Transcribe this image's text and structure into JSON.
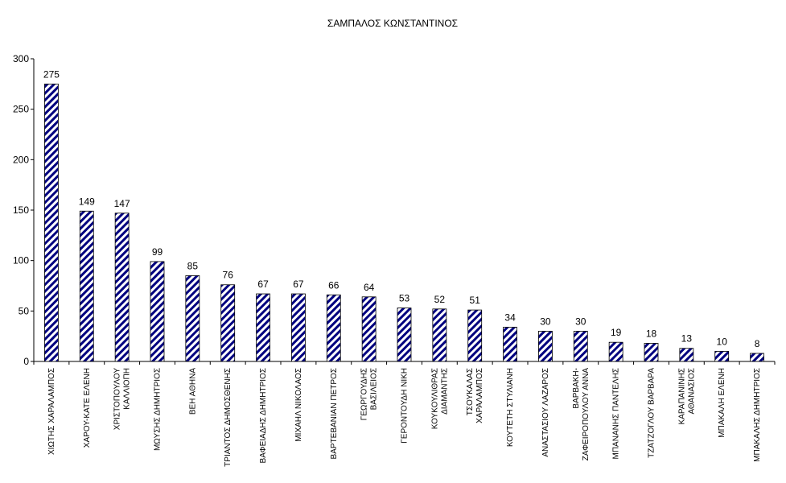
{
  "chart_data": {
    "type": "bar",
    "title": "ΣΑΜΠΑΛΟΣ ΚΩΝΣΤΑΝΤΙΝΟΣ",
    "xlabel": "",
    "ylabel": "",
    "ylim": [
      0,
      300
    ],
    "yticks": [
      0,
      50,
      100,
      150,
      200,
      250,
      300
    ],
    "grid": false,
    "legend": "none",
    "bar_fill": "diagonal-hatch",
    "colors": {
      "bar_stripe": "#00007f",
      "bar_background": "#ffffff",
      "axis": "#000000"
    },
    "categories": [
      [
        "ΧΙΩΤΗΣ ΧΑΡΑΛΑΜΠΟΣ"
      ],
      [
        "ΧΑΡΟΥ-ΚΑΤΕ ΕΛΕΝΗ"
      ],
      [
        "ΧΡΙΣΤΟΠΟΥΛΟΥ",
        "ΚΑΛΛΙΟΠΗ"
      ],
      [
        "ΜΩΥΣΗΣ ΔΗΜΗΤΡΙΟΣ"
      ],
      [
        "ΒΕΗ ΑΘΗΝΑ"
      ],
      [
        "ΤΡΙΑΝΤΟΣ ΔΗΜΟΣΘΕΝΗΣ"
      ],
      [
        "ΒΑΦΕΙΑΔΗΣ ΔΗΜΗΤΡΙΟΣ"
      ],
      [
        "ΜΙΧΑΗΛ ΝΙΚΟΛΑΟΣ"
      ],
      [
        "ΒΑΡΤΕΒΑΝΙΑΝ ΠΕΤΡΟΣ"
      ],
      [
        "ΓΕΩΡΓΟΥΔΗΣ",
        "ΒΑΣΙΛΕΙΟΣ"
      ],
      [
        "ΓΕΡΟΝΤΟΥΔΗ ΝΙΚΗ"
      ],
      [
        "ΚΟΥΚΟΥΛΙΘΡΑΣ",
        "ΔΙΑΜΑΝΤΗΣ"
      ],
      [
        "ΤΣΟΥΚΑΛΑΣ",
        "ΧΑΡΑΛΑΜΠΟΣ"
      ],
      [
        "ΚΟΥΤΕΤΗ ΣΤΥΛΙΑΝΗ"
      ],
      [
        "ΑΝΑΣΤΑΣΙΟΥ ΛΑΖΑΡΟΣ"
      ],
      [
        "ΒΑΡΒΑΚΗ-",
        "ΖΑΦΕΙΡΟΠΟΥΛΟΥ ΑΝΝΑ"
      ],
      [
        "ΜΠΑΝΑΝΗΣ ΠΑΝΤΕΛΗΣ"
      ],
      [
        "ΤΖΑΤΖΟΓΛΟΥ ΒΑΡΒΑΡΑ"
      ],
      [
        "ΚΑΡΑΠΑΝΙΝΗΣ",
        "ΑΘΑΝΑΣΙΟΣ"
      ],
      [
        "ΜΠΑΚΑΛΗ ΕΛΕΝΗ"
      ],
      [
        "ΜΠΑΚΑΛΗΣ ΔΗΜΗΤΡΙΟΣ"
      ]
    ],
    "values": [
      275,
      149,
      147,
      99,
      85,
      76,
      67,
      67,
      66,
      64,
      53,
      52,
      51,
      34,
      30,
      30,
      19,
      18,
      13,
      10,
      8
    ]
  }
}
